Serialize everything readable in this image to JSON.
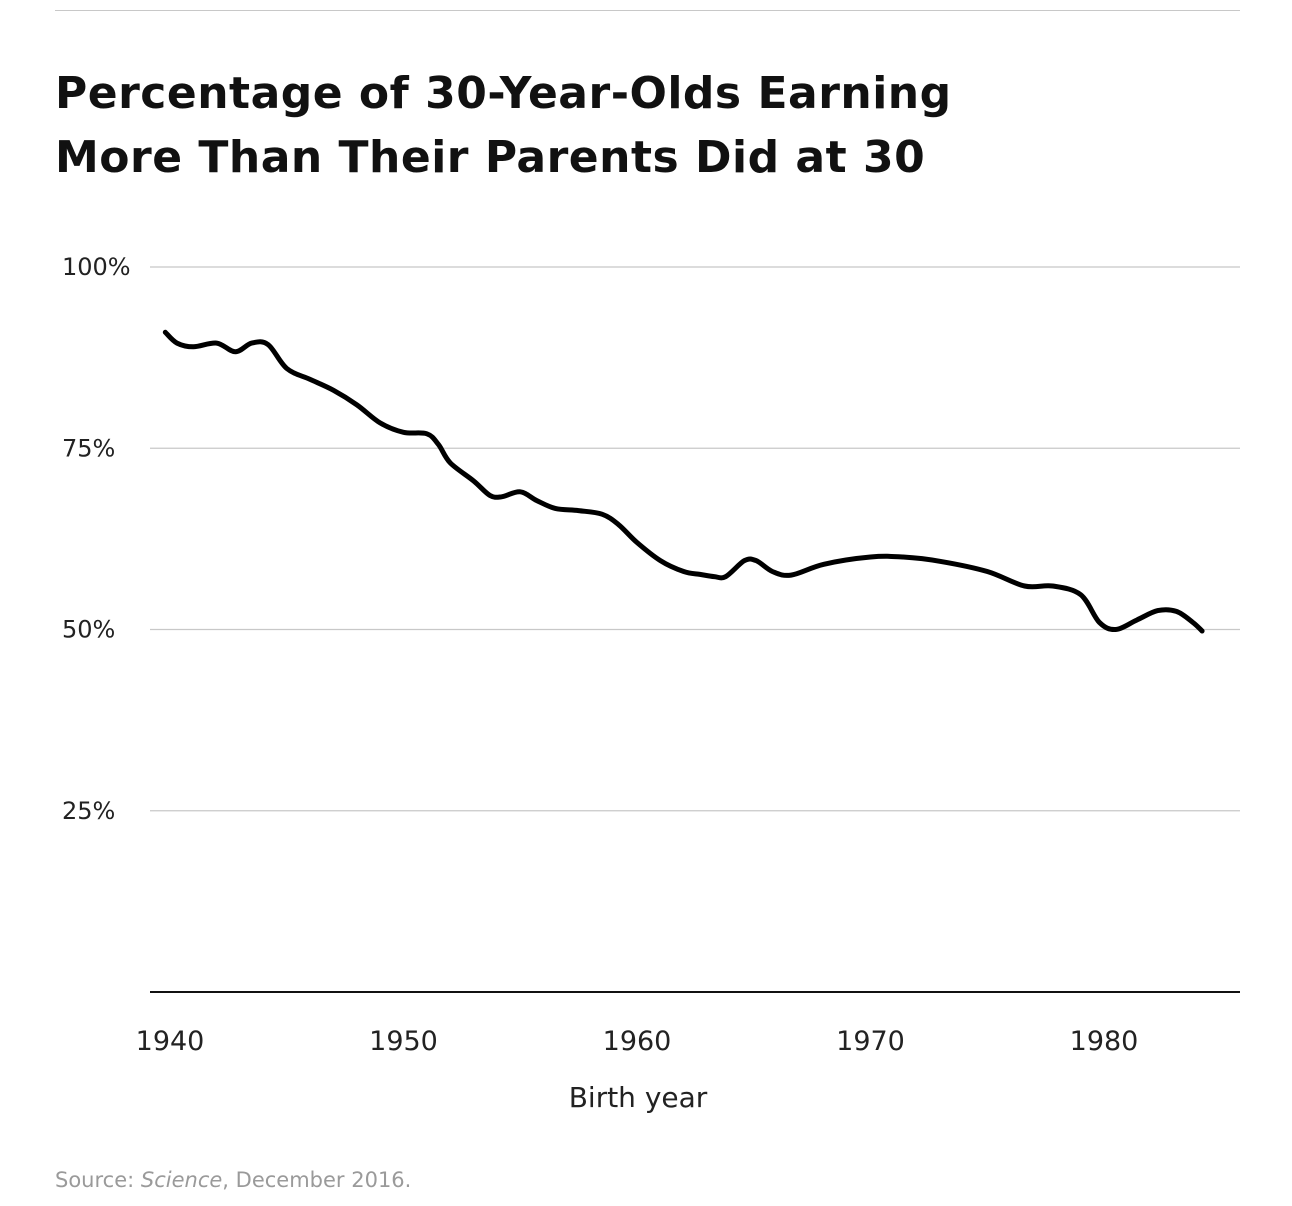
{
  "title_lines": [
    "Percentage of 30-Year-Olds Earning",
    "More Than Their Parents Did at 30"
  ],
  "source": {
    "prefix": "Source: ",
    "publication": "Science",
    "suffix": ", December 2016."
  },
  "colors": {
    "line": "#000000",
    "grid": "#c8c8c8",
    "axis": "#111111",
    "source_text": "#9a9a9a"
  },
  "chart_data": {
    "type": "line",
    "title": "Percentage of 30-Year-Olds Earning More Than Their Parents Did at 30",
    "xlabel": "Birth year",
    "ylabel": "",
    "xlim": [
      1940,
      1984
    ],
    "ylim": [
      0,
      100
    ],
    "x_ticks": [
      1940,
      1950,
      1960,
      1970,
      1980
    ],
    "x_tick_labels": [
      "1940",
      "1950",
      "1960",
      "1970",
      "1980"
    ],
    "y_ticks": [
      100,
      75,
      50,
      25
    ],
    "y_tick_labels": [
      "100%",
      "75%",
      "50%",
      "25%"
    ],
    "grid": true,
    "legend": "none",
    "series": [
      {
        "x": [
          1939.8,
          1940.3,
          1941.0,
          1942.0,
          1942.8,
          1943.5,
          1944.2,
          1945.0,
          1946.0,
          1947.0,
          1948.0,
          1949.0,
          1950.0,
          1951.0,
          1951.5,
          1952.0,
          1953.0,
          1953.7,
          1954.2,
          1955.0,
          1955.7,
          1956.5,
          1957.5,
          1958.5,
          1959.2,
          1960.0,
          1961.0,
          1962.0,
          1962.7,
          1963.3,
          1963.8,
          1964.6,
          1965.1,
          1965.8,
          1966.6,
          1968.0,
          1970.0,
          1971.4,
          1973.0,
          1975.0,
          1976.6,
          1977.8,
          1979.0,
          1979.8,
          1980.5,
          1981.4,
          1982.3,
          1983.1,
          1983.8,
          1984.2
        ],
        "values": [
          91,
          89.5,
          89,
          89.5,
          88.3,
          89.5,
          89.3,
          86.0,
          84.5,
          83.0,
          81.0,
          78.5,
          77.2,
          77.0,
          75.5,
          73.0,
          70.5,
          68.5,
          68.3,
          69.0,
          67.8,
          66.7,
          66.4,
          65.9,
          64.5,
          62.0,
          59.5,
          58.0,
          57.6,
          57.3,
          57.3,
          59.5,
          59.5,
          58.0,
          57.5,
          59.0,
          60.0,
          60.0,
          59.4,
          58.0,
          56.0,
          56.0,
          54.8,
          51.0,
          50.0,
          51.3,
          52.6,
          52.5,
          51.0,
          49.8
        ]
      }
    ]
  }
}
